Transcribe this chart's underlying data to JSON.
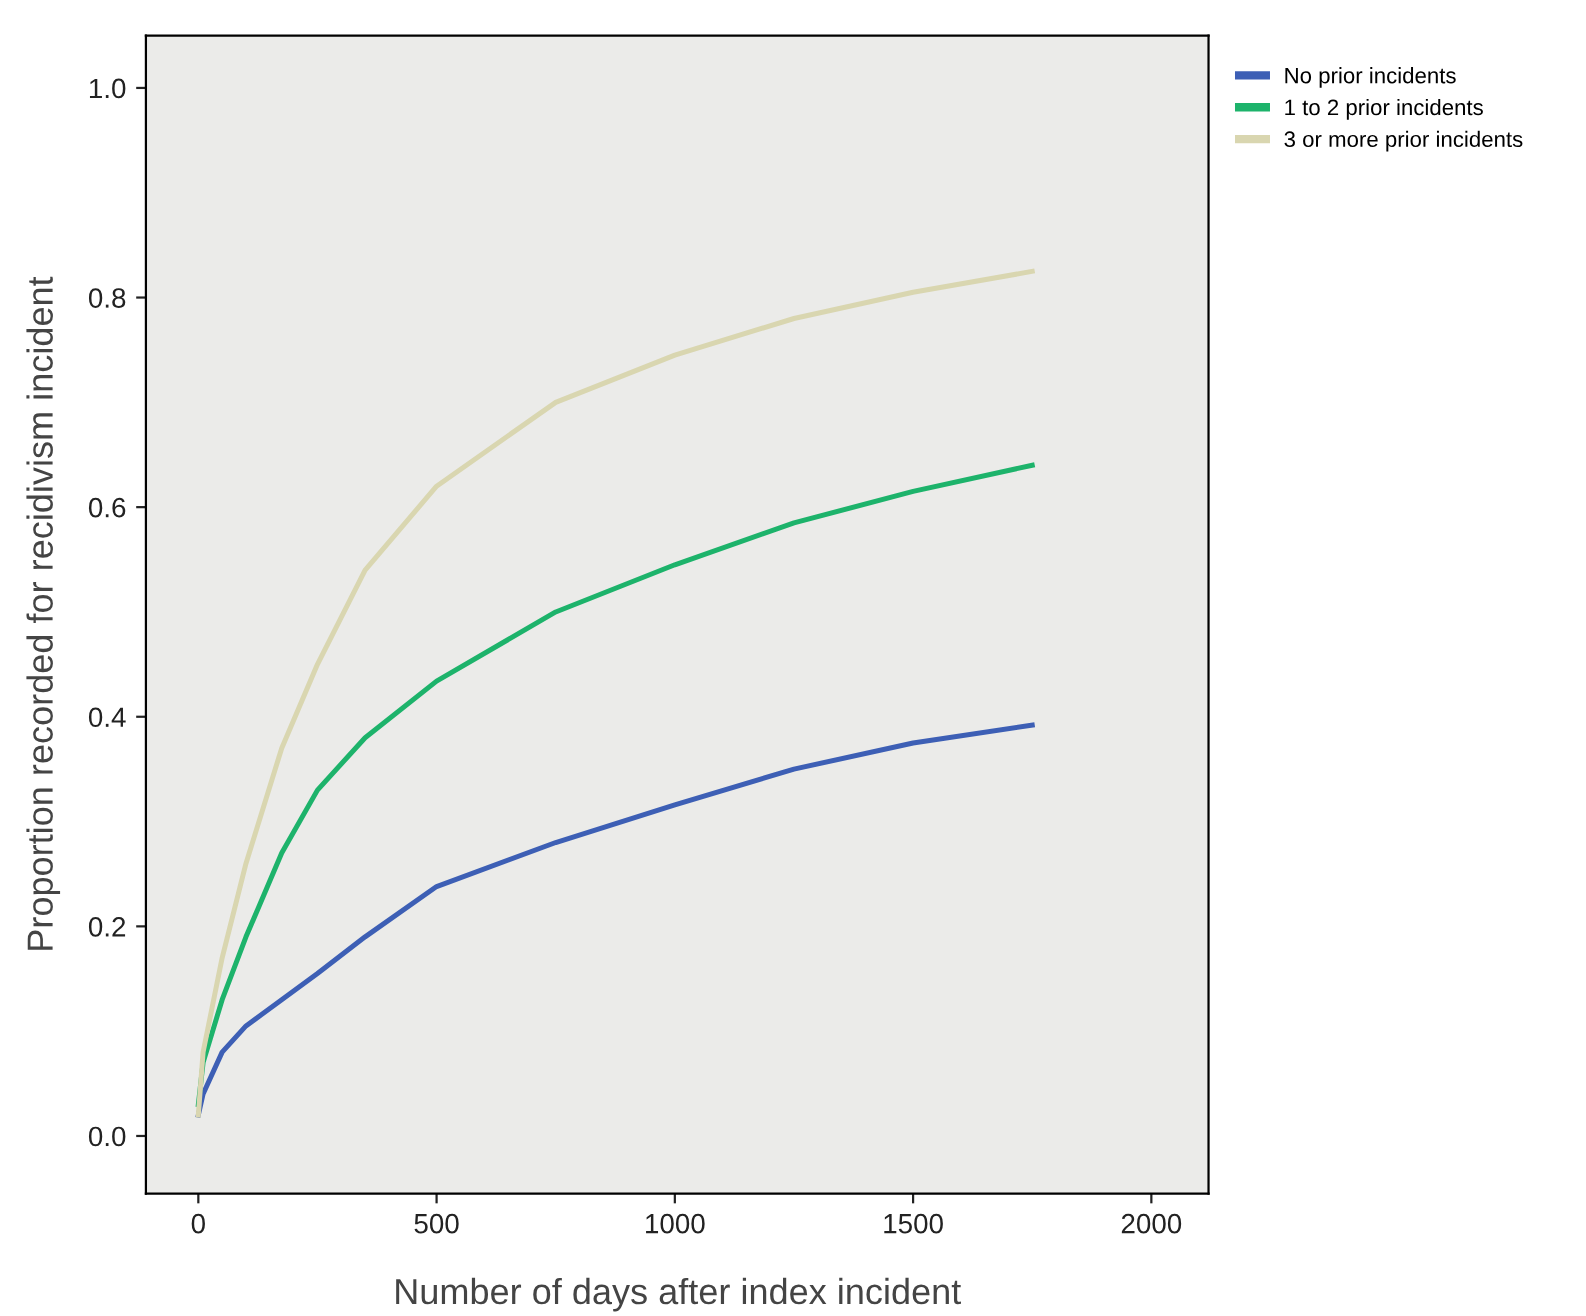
{
  "chart_data": {
    "type": "line",
    "xlabel": "Number of days after index incident",
    "ylabel": "Proportion recorded for recidivism incident",
    "xlim": [
      -110,
      2120
    ],
    "ylim": [
      -0.055,
      1.05
    ],
    "xticks": [
      0,
      500,
      1000,
      1500,
      2000
    ],
    "yticks": [
      {
        "value": 0,
        "label": "0.0"
      },
      {
        "value": 0.2,
        "label": "0.2"
      },
      {
        "value": 0.4,
        "label": "0.4"
      },
      {
        "value": 0.6,
        "label": "0.6"
      },
      {
        "value": 0.8,
        "label": "0.8"
      },
      {
        "value": 1.0,
        "label": "1.0"
      }
    ],
    "x": [
      0,
      10,
      50,
      100,
      175,
      250,
      350,
      500,
      750,
      1000,
      1250,
      1500,
      1750
    ],
    "series": [
      {
        "name": "No prior incidents",
        "color": "#3d5fb5",
        "values": [
          0.02,
          0.04,
          0.08,
          0.105,
          0.13,
          0.155,
          0.19,
          0.238,
          0.28,
          0.316,
          0.35,
          0.375,
          0.392
        ]
      },
      {
        "name": "1 to 2 prior incidents",
        "color": "#1db36b",
        "values": [
          0.03,
          0.07,
          0.13,
          0.19,
          0.27,
          0.33,
          0.38,
          0.434,
          0.5,
          0.545,
          0.585,
          0.615,
          0.64
        ]
      },
      {
        "name": "3 or more prior incidents",
        "color": "#d9d6b0",
        "values": [
          0.02,
          0.08,
          0.17,
          0.26,
          0.37,
          0.45,
          0.54,
          0.62,
          0.7,
          0.745,
          0.78,
          0.805,
          0.825
        ]
      }
    ],
    "grid": false,
    "legend": "top right",
    "line_style": "solid",
    "marker": "none"
  }
}
